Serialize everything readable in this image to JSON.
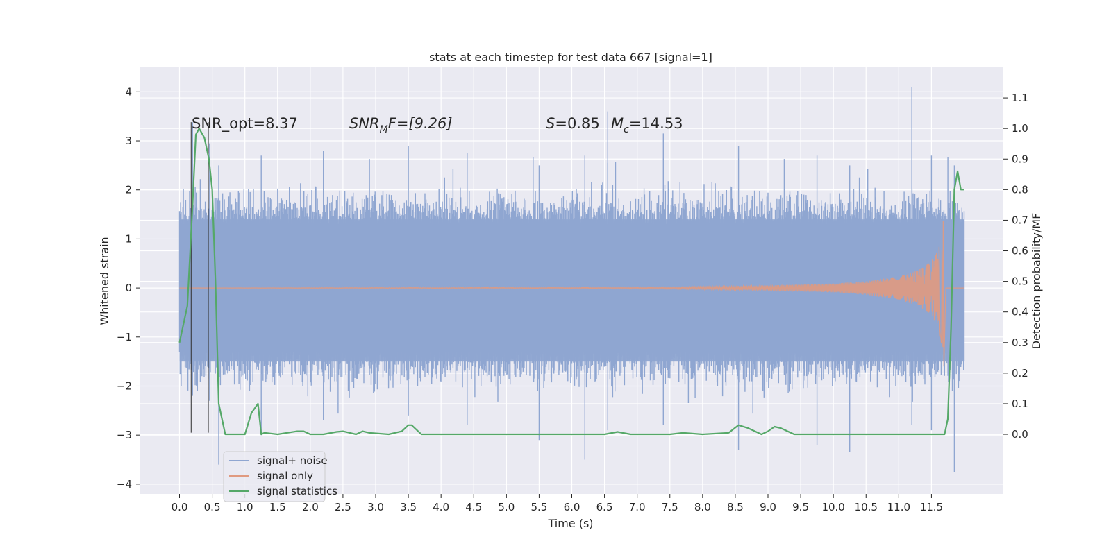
{
  "chart_data": {
    "type": "line",
    "title": "stats at each timestep for test data 667 [signal=1]",
    "xlabel": "Time (s)",
    "ylabel": "Whitened strain",
    "ylabel_right": "Detection probability/MF",
    "xlim": [
      -0.6,
      12.6
    ],
    "ylim": [
      -4.2,
      4.5
    ],
    "ylim_right": [
      -0.195,
      1.2
    ],
    "grid": true,
    "legend_position": "lower-left",
    "x_ticks": [
      "0.0",
      "0.5",
      "1.0",
      "1.5",
      "2.0",
      "2.5",
      "3.0",
      "3.5",
      "4.0",
      "4.5",
      "5.0",
      "5.5",
      "6.0",
      "6.5",
      "7.0",
      "7.5",
      "8.0",
      "8.5",
      "9.0",
      "9.5",
      "10.0",
      "10.5",
      "11.0",
      "11.5"
    ],
    "y_ticks": [
      "4",
      "3",
      "2",
      "1",
      "0",
      "−1",
      "−2",
      "−3",
      "−4"
    ],
    "y_ticks_right": [
      "1.1",
      "1.0",
      "0.9",
      "0.8",
      "0.7",
      "0.6",
      "0.5",
      "0.4",
      "0.3",
      "0.2",
      "0.1",
      "0.0"
    ],
    "annotations": {
      "snr_opt": "SNR_opt=8.37",
      "snr_mf_name": "SNR",
      "snr_mf_sub": "M",
      "snr_mf_rest": "F=[9.26]",
      "s_name": "S",
      "s_rest": "=0.85",
      "mc_name": "M",
      "mc_sub": "c",
      "mc_rest": "=14.53"
    },
    "vlines_x": [
      0.18,
      0.44
    ],
    "series": [
      {
        "name": "signal+ noise",
        "color": "#8fa6d1",
        "description_level": "noise band approx between -1.5 and 1.4 with spikes to about 3.3/-2.8",
        "spikes": [
          [
            0.2,
            3.38,
            -2.2
          ],
          [
            0.46,
            2.95,
            -2.3
          ],
          [
            0.6,
            2.5,
            -3.6
          ],
          [
            1.25,
            2.7,
            -3.0
          ],
          [
            2.2,
            2.8,
            -2.7
          ],
          [
            3.5,
            2.9,
            -2.6
          ],
          [
            4.4,
            2.75,
            -2.8
          ],
          [
            5.5,
            2.5,
            -3.1
          ],
          [
            6.2,
            2.7,
            -3.5
          ],
          [
            6.55,
            3.6,
            -2.9
          ],
          [
            7.4,
            3.15,
            -2.8
          ],
          [
            8.55,
            2.9,
            -3.3
          ],
          [
            9.75,
            2.7,
            -3.2
          ],
          [
            10.25,
            2.5,
            -3.35
          ],
          [
            11.2,
            4.1,
            -2.8
          ],
          [
            11.5,
            2.7,
            -2.9
          ],
          [
            11.85,
            2.5,
            -3.75
          ]
        ]
      },
      {
        "name": "signal only",
        "color": "#e09a80",
        "chirp_envelope": [
          [
            0.0,
            0.0
          ],
          [
            7.5,
            0.02
          ],
          [
            9.0,
            0.05
          ],
          [
            10.0,
            0.09
          ],
          [
            10.5,
            0.14
          ],
          [
            11.0,
            0.24
          ],
          [
            11.3,
            0.36
          ],
          [
            11.5,
            0.55
          ],
          [
            11.62,
            0.85
          ],
          [
            11.68,
            1.4
          ]
        ],
        "merger_time": 11.68,
        "negative_peak": -1.6
      },
      {
        "name": "signal statistics",
        "color": "#55a868",
        "x": [
          0.0,
          0.12,
          0.2,
          0.25,
          0.3,
          0.38,
          0.45,
          0.5,
          0.55,
          0.6,
          0.65,
          0.7,
          1.0,
          1.1,
          1.2,
          1.25,
          1.3,
          1.5,
          1.8,
          1.9,
          2.0,
          2.2,
          2.4,
          2.5,
          2.7,
          2.8,
          2.9,
          3.2,
          3.4,
          3.5,
          3.55,
          3.7,
          3.9,
          4.2,
          4.7,
          4.9,
          5.5,
          6.5,
          6.7,
          6.9,
          7.5,
          7.7,
          8.0,
          8.4,
          8.55,
          8.7,
          8.9,
          9.0,
          9.1,
          9.2,
          9.4,
          10.0,
          11.0,
          11.7,
          11.75,
          11.8,
          11.85,
          11.9,
          11.95,
          12.0
        ],
        "y": [
          0.3,
          0.42,
          0.75,
          0.98,
          1.0,
          0.97,
          0.9,
          0.8,
          0.5,
          0.1,
          0.05,
          0.0,
          0.0,
          0.07,
          0.1,
          0.0,
          0.005,
          0.0,
          0.01,
          0.01,
          0.0,
          0.0,
          0.008,
          0.01,
          0.0,
          0.01,
          0.005,
          0.0,
          0.01,
          0.03,
          0.03,
          0.0,
          0.0,
          0.0,
          0.0,
          0.0,
          0.0,
          0.0,
          0.008,
          0.0,
          0.0,
          0.005,
          0.0,
          0.005,
          0.03,
          0.02,
          0.0,
          0.01,
          0.025,
          0.02,
          0.0,
          0.0,
          0.0,
          0.0,
          0.05,
          0.35,
          0.8,
          0.86,
          0.8,
          0.8
        ]
      }
    ]
  },
  "colors": {
    "axes_bg": "#eaeaf2",
    "grid": "#ffffff",
    "vline": "#333333"
  }
}
